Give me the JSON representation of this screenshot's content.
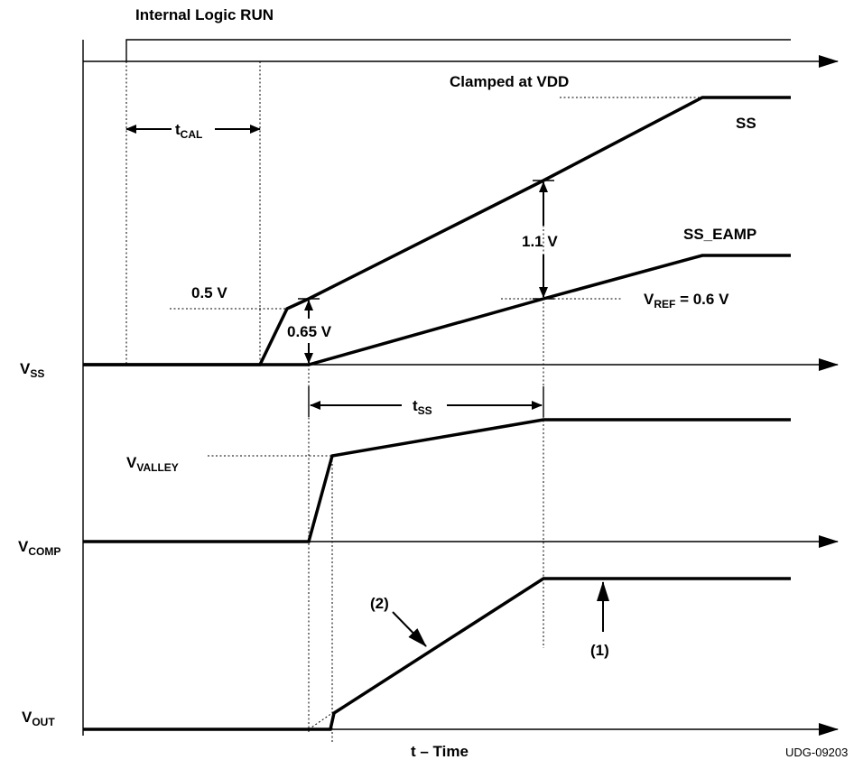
{
  "title": "Internal Logic RUN",
  "clamped_label": "Clamped at VDD",
  "ss_label": "SS",
  "ss_eamp_label": "SS_EAMP",
  "v_0_5": "0.5 V",
  "v_0_65": "0.65 V",
  "v_1_1": "1.1 V",
  "vref": {
    "main": "V",
    "sub": "REF",
    "rest": " = 0.6 V"
  },
  "vss": {
    "main": "V",
    "sub": "SS"
  },
  "vcomp": {
    "main": "V",
    "sub": "COMP"
  },
  "vout": {
    "main": "V",
    "sub": "OUT"
  },
  "vvalley": {
    "main": "V",
    "sub": "VALLEY"
  },
  "tcal": {
    "main": "t",
    "sub": "CAL"
  },
  "tss": {
    "main": "t",
    "sub": "SS"
  },
  "note1": "(1)",
  "note2": "(2)",
  "xaxis": "t – Time",
  "figure_id": "UDG-09203"
}
